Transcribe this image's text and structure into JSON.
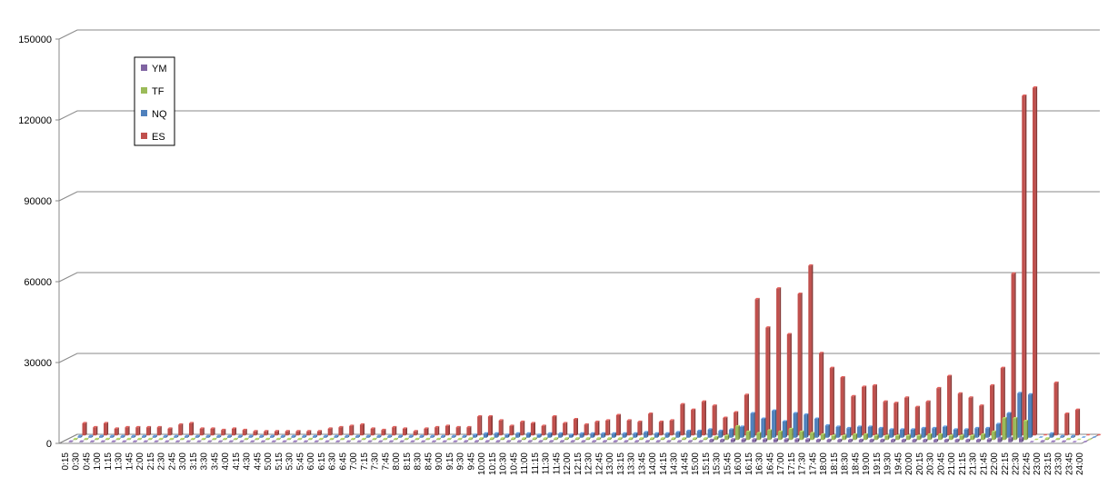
{
  "chart_data": {
    "type": "bar3d",
    "categories": [
      "0:15",
      "0:30",
      "0:45",
      "1:00",
      "1:15",
      "1:30",
      "1:45",
      "2:00",
      "2:15",
      "2:30",
      "2:45",
      "3:00",
      "3:15",
      "3:30",
      "3:45",
      "4:00",
      "4:15",
      "4:30",
      "4:45",
      "5:00",
      "5:15",
      "5:30",
      "5:45",
      "6:00",
      "6:15",
      "6:30",
      "6:45",
      "7:00",
      "7:15",
      "7:30",
      "7:45",
      "8:00",
      "8:15",
      "8:30",
      "8:45",
      "9:00",
      "9:15",
      "9:30",
      "9:45",
      "10:00",
      "10:15",
      "10:30",
      "10:45",
      "11:00",
      "11:15",
      "11:30",
      "11:45",
      "12:00",
      "12:15",
      "12:30",
      "12:45",
      "13:00",
      "13:15",
      "13:30",
      "13:45",
      "14:00",
      "14:15",
      "14:30",
      "14:45",
      "15:00",
      "15:15",
      "15:30",
      "15:45",
      "16:00",
      "16:15",
      "16:30",
      "16:45",
      "17:00",
      "17:15",
      "17:30",
      "17:45",
      "18:00",
      "18:15",
      "18:30",
      "18:45",
      "19:00",
      "19:15",
      "19:30",
      "19:45",
      "20:00",
      "20:15",
      "20:30",
      "20:45",
      "21:00",
      "21:15",
      "21:30",
      "21:45",
      "22:00",
      "22:15",
      "22:30",
      "22:45",
      "23:00",
      "23:15",
      "23:30",
      "23:45",
      "24:00"
    ],
    "series": [
      {
        "name": "YM",
        "color": "#8064a2",
        "values": [
          200,
          200,
          200,
          200,
          200,
          200,
          200,
          200,
          200,
          200,
          200,
          200,
          200,
          200,
          200,
          200,
          200,
          200,
          200,
          200,
          200,
          200,
          200,
          200,
          200,
          200,
          200,
          200,
          200,
          200,
          200,
          200,
          200,
          200,
          200,
          200,
          200,
          300,
          300,
          300,
          300,
          300,
          300,
          300,
          300,
          300,
          300,
          300,
          300,
          300,
          300,
          300,
          300,
          300,
          300,
          300,
          300,
          300,
          300,
          300,
          800,
          800,
          1000,
          1000,
          1000,
          1000,
          1000,
          1000,
          1000,
          1000,
          800,
          800,
          800,
          800,
          800,
          800,
          800,
          800,
          800,
          800,
          800,
          800,
          800,
          800,
          800,
          800,
          1000,
          1500,
          1500,
          1500,
          0,
          300,
          200,
          200,
          0,
          0
        ]
      },
      {
        "name": "TF",
        "color": "#9bbb59",
        "values": [
          300,
          300,
          300,
          300,
          300,
          300,
          300,
          300,
          300,
          300,
          300,
          300,
          300,
          300,
          300,
          300,
          300,
          300,
          300,
          300,
          300,
          300,
          300,
          300,
          300,
          300,
          300,
          300,
          300,
          300,
          300,
          300,
          300,
          300,
          300,
          300,
          300,
          500,
          500,
          500,
          500,
          500,
          500,
          500,
          500,
          500,
          500,
          500,
          500,
          500,
          500,
          500,
          500,
          500,
          500,
          500,
          500,
          500,
          500,
          500,
          1000,
          1500,
          5000,
          3000,
          2500,
          3500,
          3000,
          4000,
          3000,
          2500,
          2000,
          1500,
          1500,
          2000,
          2000,
          1500,
          1500,
          1500,
          1500,
          1500,
          2000,
          2000,
          1500,
          1500,
          1500,
          2000,
          3000,
          8000,
          8000,
          7000,
          0,
          500,
          300,
          300,
          0,
          0
        ]
      },
      {
        "name": "NQ",
        "color": "#4f81bd",
        "values": [
          500,
          500,
          500,
          500,
          500,
          500,
          500,
          500,
          500,
          500,
          500,
          500,
          500,
          500,
          500,
          500,
          500,
          500,
          500,
          500,
          500,
          500,
          500,
          500,
          500,
          500,
          500,
          500,
          500,
          500,
          500,
          500,
          500,
          500,
          500,
          500,
          500,
          1000,
          1500,
          1500,
          1000,
          1500,
          1500,
          1000,
          1500,
          1500,
          1000,
          1500,
          1500,
          1500,
          1500,
          1500,
          1500,
          2000,
          1500,
          1500,
          2000,
          2500,
          2500,
          3000,
          2500,
          3000,
          4000,
          9000,
          7000,
          10000,
          6000,
          9000,
          8500,
          7000,
          4500,
          4000,
          3500,
          4000,
          4000,
          3500,
          3000,
          3000,
          3000,
          3500,
          3500,
          4000,
          3000,
          3000,
          3500,
          3500,
          5000,
          9000,
          16500,
          16000,
          0,
          1500,
          500,
          500,
          0,
          0
        ]
      },
      {
        "name": "ES",
        "color": "#c0504d",
        "values": [
          4500,
          3000,
          4500,
          2500,
          3000,
          3000,
          3000,
          3000,
          2500,
          4000,
          4500,
          2500,
          2500,
          2000,
          2500,
          2000,
          1500,
          1500,
          1500,
          1500,
          1500,
          1500,
          1500,
          2500,
          3000,
          3500,
          4000,
          2500,
          2000,
          3000,
          2500,
          1500,
          2500,
          3000,
          3500,
          3000,
          3000,
          7000,
          7000,
          5500,
          3500,
          5000,
          4500,
          3500,
          7000,
          4500,
          6000,
          4000,
          5000,
          5500,
          7500,
          5500,
          5000,
          8000,
          5000,
          5500,
          11500,
          9500,
          12500,
          11000,
          6500,
          8500,
          15000,
          50500,
          40000,
          54500,
          37500,
          52500,
          63000,
          30500,
          25000,
          21500,
          14500,
          18000,
          18500,
          12500,
          12000,
          14000,
          10500,
          12500,
          17500,
          22000,
          15500,
          14000,
          11000,
          18500,
          25000,
          60000,
          126000,
          129000,
          0,
          19500,
          8000,
          9500,
          0,
          0
        ]
      }
    ],
    "ylim": [
      0,
      150000
    ],
    "yticks": [
      0,
      30000,
      60000,
      90000,
      120000,
      150000
    ],
    "grid": true,
    "legend": "upper left"
  }
}
